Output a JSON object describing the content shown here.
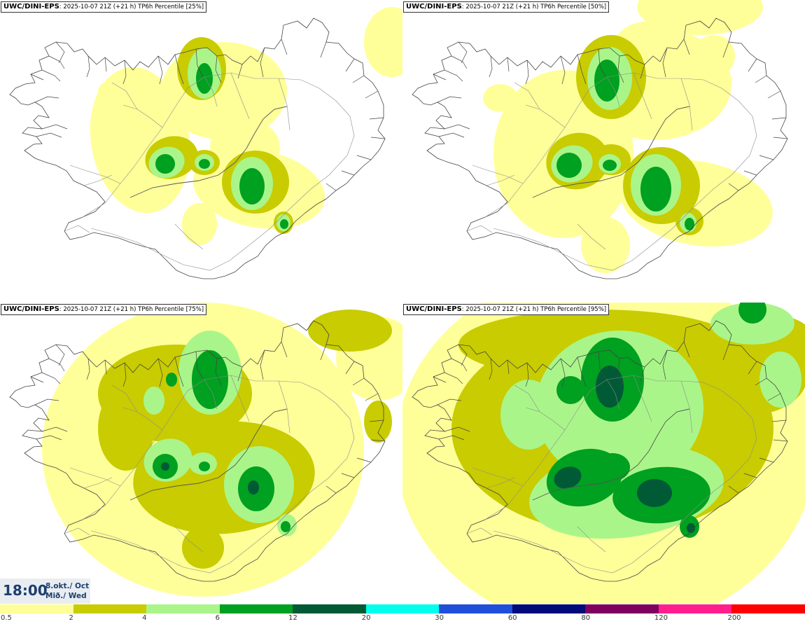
{
  "panels": [
    {
      "model": "UWC/DINI-EPS",
      "info": ": 2025-10-07 21Z (+21 h) TP6h Percentile [25%]"
    },
    {
      "model": "UWC/DINI-EPS",
      "info": ": 2025-10-07 21Z (+21 h) TP6h Percentile [50%]"
    },
    {
      "model": "UWC/DINI-EPS",
      "info": ": 2025-10-07 21Z (+21 h) TP6h Percentile [75%]"
    },
    {
      "model": "UWC/DINI-EPS",
      "info": ": 2025-10-07 21Z (+21 h) TP6h Percentile [95%]"
    }
  ],
  "timestamp": {
    "time": "18:00",
    "date_line1": "8.okt./ Oct",
    "date_line2": "Mið./ Wed"
  },
  "legend": {
    "ticks": [
      "0.5",
      "2",
      "4",
      "6",
      "12",
      "20",
      "30",
      "60",
      "80",
      "120",
      "200"
    ],
    "colors": [
      "#ffff99",
      "#c8cc00",
      "#aaf58a",
      "#00a020",
      "#005a36",
      "#00ffee",
      "#1f4fd9",
      "#000a78",
      "#800060",
      "#ff1e8c",
      "#ff0000"
    ]
  },
  "colors": {
    "c05": "#ffff99",
    "c2": "#c8cc00",
    "c4": "#aaf58a",
    "c6": "#00a020",
    "c12": "#005a36",
    "coast": "#444444"
  }
}
